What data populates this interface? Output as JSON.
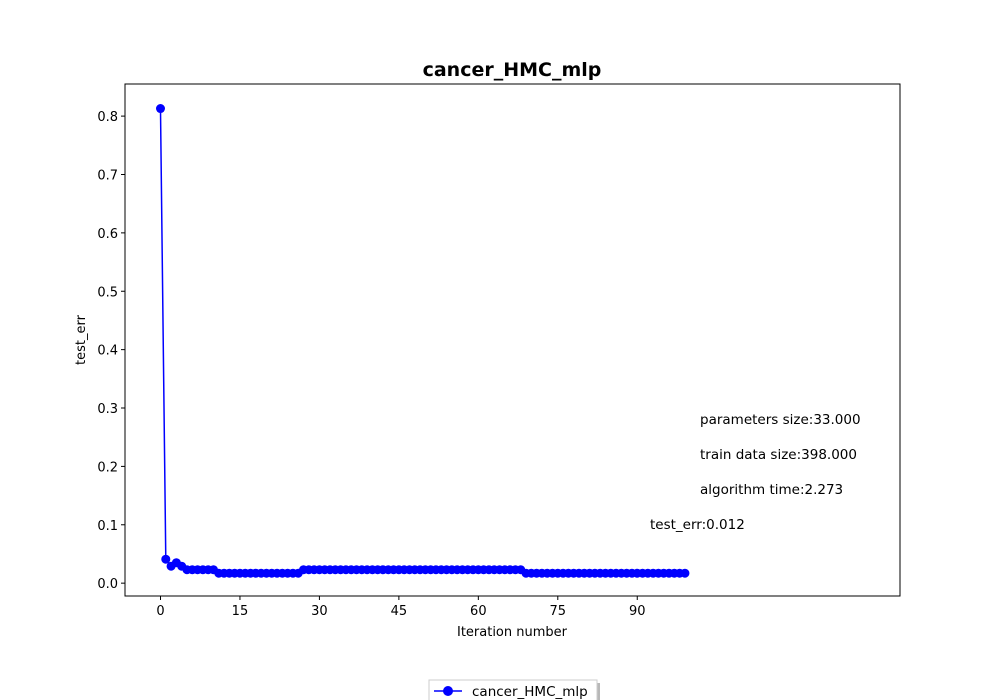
{
  "chart_data": {
    "type": "line",
    "title": "cancer_HMC_mlp",
    "xlabel": "Iteration number",
    "ylabel": "test_err",
    "xlim": [
      -6.7,
      139.6
    ],
    "ylim": [
      -0.022,
      0.855
    ],
    "xticks": [
      0,
      15,
      30,
      45,
      60,
      75,
      90
    ],
    "yticks": [
      0.0,
      0.1,
      0.2,
      0.3,
      0.4,
      0.5,
      0.6,
      0.7,
      0.8
    ],
    "ytick_labels": [
      "0.0",
      "0.1",
      "0.2",
      "0.3",
      "0.4",
      "0.5",
      "0.6",
      "0.7",
      "0.8"
    ],
    "grid": false,
    "legend": {
      "placement": "bottom-center",
      "entries": [
        "cancer_HMC_mlp"
      ]
    },
    "series": [
      {
        "name": "cancer_HMC_mlp",
        "color": "#0000ff",
        "marker": "circle",
        "x": [
          0,
          1,
          2,
          3,
          4,
          5,
          6,
          7,
          8,
          9,
          10,
          11,
          12,
          13,
          14,
          15,
          16,
          17,
          18,
          19,
          20,
          21,
          22,
          23,
          24,
          25,
          26,
          27,
          28,
          29,
          30,
          31,
          32,
          33,
          34,
          35,
          36,
          37,
          38,
          39,
          40,
          41,
          42,
          43,
          44,
          45,
          46,
          47,
          48,
          49,
          50,
          51,
          52,
          53,
          54,
          55,
          56,
          57,
          58,
          59,
          60,
          61,
          62,
          63,
          64,
          65,
          66,
          67,
          68,
          69,
          70,
          71,
          72,
          73,
          74,
          75,
          76,
          77,
          78,
          79,
          80,
          81,
          82,
          83,
          84,
          85,
          86,
          87,
          88,
          89,
          90,
          91,
          92,
          93,
          94,
          95,
          96,
          97,
          98,
          99
        ],
        "values": [
          0.813,
          0.041,
          0.029,
          0.035,
          0.029,
          0.023,
          0.023,
          0.023,
          0.023,
          0.023,
          0.023,
          0.017,
          0.017,
          0.017,
          0.017,
          0.017,
          0.017,
          0.017,
          0.017,
          0.017,
          0.017,
          0.017,
          0.017,
          0.017,
          0.017,
          0.017,
          0.017,
          0.023,
          0.023,
          0.023,
          0.023,
          0.023,
          0.023,
          0.023,
          0.023,
          0.023,
          0.023,
          0.023,
          0.023,
          0.023,
          0.023,
          0.023,
          0.023,
          0.023,
          0.023,
          0.023,
          0.023,
          0.023,
          0.023,
          0.023,
          0.023,
          0.023,
          0.023,
          0.023,
          0.023,
          0.023,
          0.023,
          0.023,
          0.023,
          0.023,
          0.023,
          0.023,
          0.023,
          0.023,
          0.023,
          0.023,
          0.023,
          0.023,
          0.023,
          0.017,
          0.017,
          0.017,
          0.017,
          0.017,
          0.017,
          0.017,
          0.017,
          0.017,
          0.017,
          0.017,
          0.017,
          0.017,
          0.017,
          0.017,
          0.017,
          0.017,
          0.017,
          0.017,
          0.017,
          0.017,
          0.017,
          0.017,
          0.017,
          0.017,
          0.017,
          0.017,
          0.017,
          0.017,
          0.017,
          0.017
        ]
      }
    ],
    "annotations": [
      "parameters size:33.000",
      "train data size:398.000",
      "algorithm time:2.273",
      "test_err:0.012"
    ]
  }
}
